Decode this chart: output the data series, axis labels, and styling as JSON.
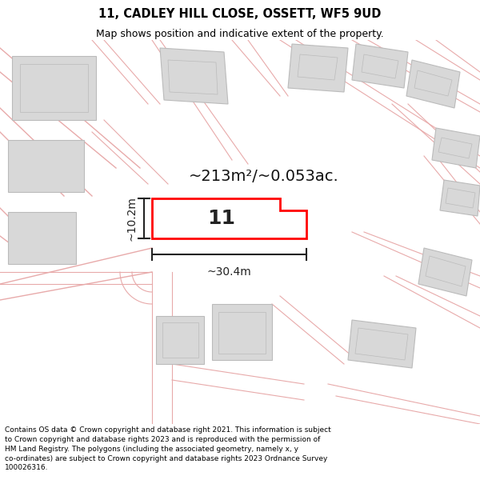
{
  "title": "11, CADLEY HILL CLOSE, OSSETT, WF5 9UD",
  "subtitle": "Map shows position and indicative extent of the property.",
  "area_text": "~213m²/~0.053ac.",
  "width_label": "~30.4m",
  "height_label": "~10.2m",
  "number_label": "11",
  "footer_text": "Contains OS data © Crown copyright and database right 2021. This information is subject to Crown copyright and database rights 2023 and is reproduced with the permission of HM Land Registry. The polygons (including the associated geometry, namely x, y co-ordinates) are subject to Crown copyright and database rights 2023 Ordnance Survey 100026316.",
  "bg_color": "#ffffff",
  "map_bg": "#f5f0f0",
  "building_fill": "#d8d8d8",
  "building_edge": "#bbbbbb",
  "plot_edge_color": "#ff0000",
  "plot_fill": "#ffffff",
  "dim_color": "#222222",
  "title_color": "#000000",
  "footer_color": "#000000",
  "pink_line": "#e8aaaa",
  "grey_line": "#aaaaaa"
}
